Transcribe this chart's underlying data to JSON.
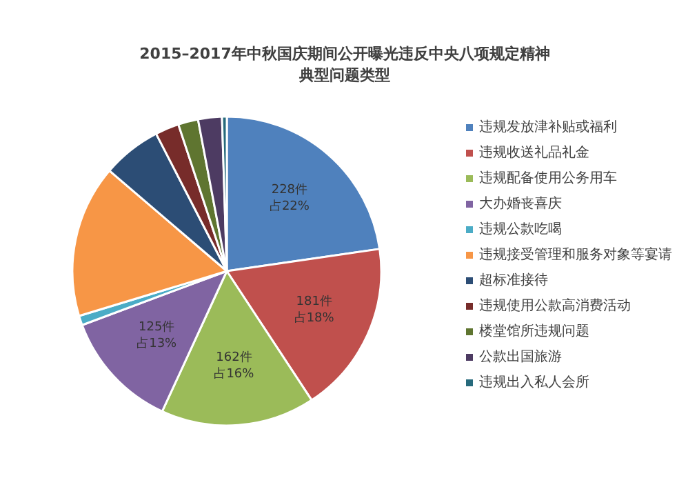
{
  "chart_data": {
    "type": "pie",
    "title": "2015–2017年中秋国庆期间公开曝光违反中央八项规定精神典型问题类型",
    "categories": [
      "违规发放津补贴或福利",
      "违规收送礼品礼金",
      "违规配备使用公务用车",
      "大办婚丧喜庆",
      "违规公款吃喝",
      "违规接受管理和服务对象等宴请",
      "超标准接待",
      "违规使用公款高消费活动",
      "楼堂馆所违规问题",
      "公款出国旅游",
      "违规出入私人会所"
    ],
    "values": [
      228,
      181,
      162,
      125,
      10,
      160,
      62,
      25,
      21,
      25,
      5
    ],
    "colors": [
      "#4f81bd",
      "#c0504d",
      "#9bbb59",
      "#8064a2",
      "#4bacc6",
      "#f79646",
      "#2c4d75",
      "#772c2a",
      "#5f7530",
      "#4d3b62",
      "#276a7c"
    ],
    "value_labels": [
      "228件占22%",
      "181件占18%",
      "162件占16%",
      "125件占13%",
      null,
      null,
      null,
      null,
      null,
      null,
      null
    ],
    "legend": "right"
  }
}
